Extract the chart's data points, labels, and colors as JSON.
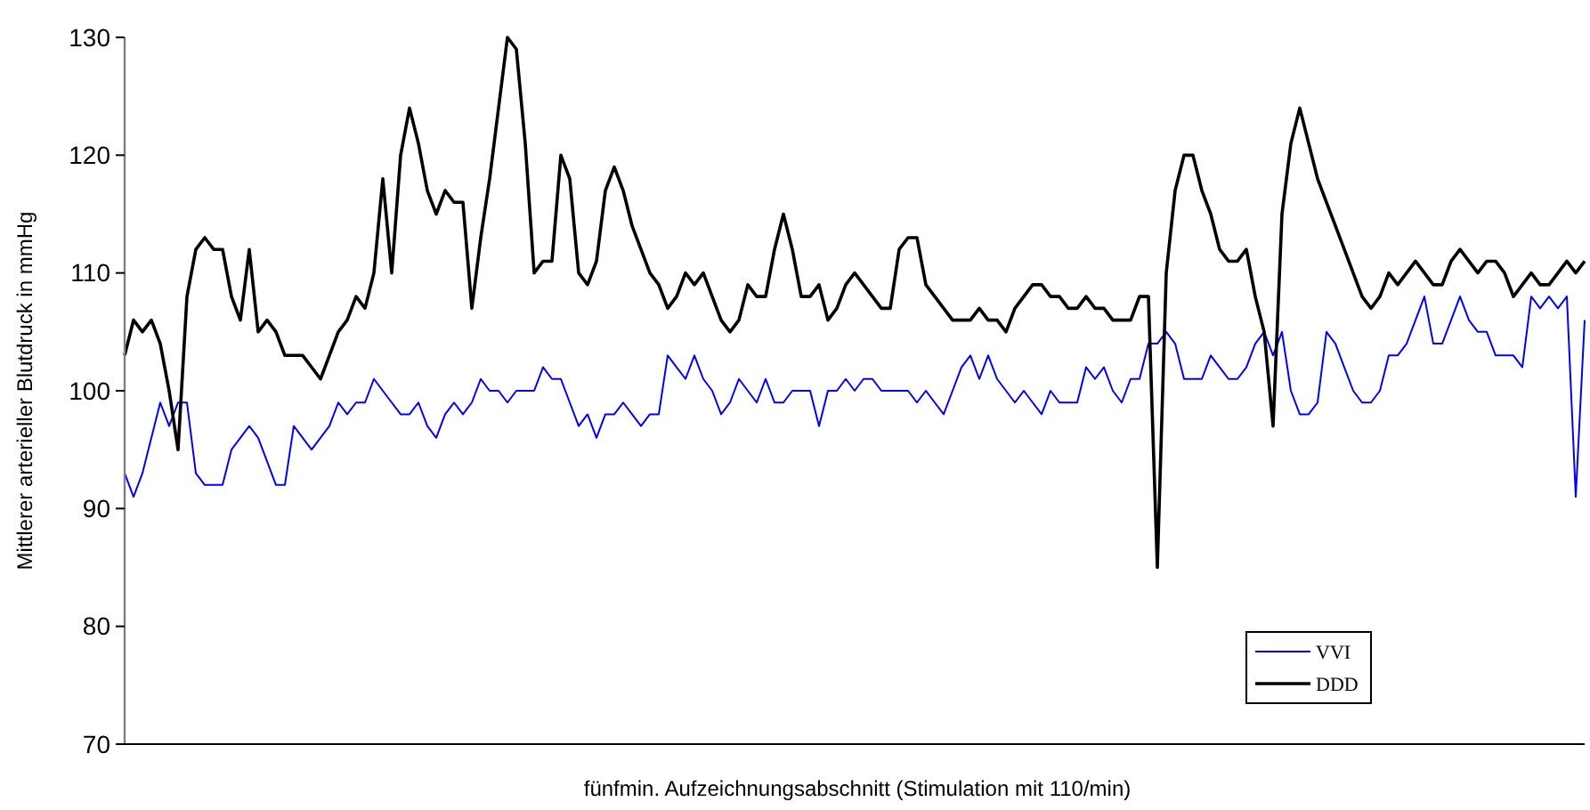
{
  "chart_data": {
    "type": "line",
    "xlabel": "fünfmin. Aufzeichnungsabschnitt (Stimulation mit 110/min)",
    "ylabel": "Mittlerer arterieller Blutdruck in mmHg",
    "ylim": [
      70,
      130
    ],
    "yticks": [
      70,
      80,
      90,
      100,
      110,
      120,
      130
    ],
    "grid": false,
    "legend": "bottom right",
    "categories": [
      null,
      null,
      null,
      null,
      null,
      null,
      null,
      null,
      null,
      null,
      null,
      null,
      null,
      null,
      null,
      null,
      null,
      null,
      null,
      null,
      null,
      null,
      null,
      null,
      null,
      null,
      null,
      null,
      null,
      null,
      null,
      null,
      null,
      null,
      null,
      null,
      null,
      null,
      null,
      null,
      null,
      null,
      null,
      null,
      null,
      null,
      null,
      null,
      null,
      null,
      null,
      null,
      null,
      null,
      null,
      null,
      null,
      null,
      null,
      null,
      null,
      null,
      null,
      null,
      null,
      null,
      null,
      null,
      null,
      null,
      null,
      null,
      null,
      null,
      null,
      null,
      null,
      null,
      null,
      null,
      null,
      null,
      null,
      null,
      null,
      null,
      null,
      null,
      null,
      null,
      null,
      null,
      null,
      null,
      null,
      null,
      null,
      null,
      null,
      null,
      null,
      null,
      null,
      null,
      null,
      null,
      null,
      null,
      null,
      null,
      null,
      null,
      null,
      null,
      null,
      null,
      null,
      null,
      null,
      null,
      null,
      null,
      null,
      null,
      null,
      null,
      null,
      null,
      null,
      null,
      null,
      null,
      null,
      null,
      null,
      null,
      null,
      null,
      null,
      null,
      null,
      null,
      null,
      null,
      null,
      null,
      null,
      null,
      null,
      null,
      null,
      null,
      null,
      null,
      null,
      null,
      null,
      null,
      null,
      null,
      null,
      null,
      null,
      null,
      null
    ],
    "series": [
      {
        "name": "VVI",
        "color": "#0000ff",
        "values": [
          93,
          91,
          93,
          96,
          99,
          97,
          99,
          99,
          93,
          92,
          92,
          92,
          95,
          96,
          97,
          96,
          94,
          92,
          92,
          97,
          96,
          95,
          96,
          97,
          99,
          98,
          99,
          99,
          101,
          100,
          99,
          98,
          98,
          99,
          97,
          96,
          98,
          99,
          98,
          99,
          101,
          100,
          100,
          99,
          100,
          100,
          100,
          102,
          101,
          101,
          99,
          97,
          98,
          96,
          98,
          98,
          99,
          98,
          97,
          98,
          98,
          103,
          102,
          101,
          103,
          101,
          100,
          98,
          99,
          101,
          100,
          99,
          101,
          99,
          99,
          100,
          100,
          100,
          97,
          100,
          100,
          101,
          100,
          101,
          101,
          100,
          100,
          100,
          100,
          99,
          100,
          99,
          98,
          100,
          102,
          103,
          101,
          103,
          101,
          100,
          99,
          100,
          99,
          98,
          100,
          99,
          99,
          99,
          102,
          101,
          102,
          100,
          99,
          101,
          101,
          104,
          104,
          105,
          104,
          101,
          101,
          101,
          103,
          102,
          101,
          101,
          102,
          104,
          105,
          103,
          105,
          100,
          98,
          98,
          99,
          105,
          104,
          102,
          100,
          99,
          99,
          100,
          103,
          103,
          104,
          106,
          108,
          104,
          104,
          106,
          108,
          106,
          105,
          105,
          103,
          103,
          103,
          102,
          108,
          107,
          108,
          107,
          108,
          91,
          106
        ]
      },
      {
        "name": "DDD",
        "color": "#000000",
        "values": [
          103,
          106,
          105,
          106,
          104,
          100,
          95,
          108,
          112,
          113,
          112,
          112,
          108,
          106,
          112,
          105,
          106,
          105,
          103,
          103,
          103,
          102,
          101,
          103,
          105,
          106,
          108,
          107,
          110,
          118,
          110,
          120,
          124,
          121,
          117,
          115,
          117,
          116,
          116,
          107,
          113,
          118,
          124,
          130,
          129,
          121,
          110,
          111,
          111,
          120,
          118,
          110,
          109,
          111,
          117,
          119,
          117,
          114,
          112,
          110,
          109,
          107,
          108,
          110,
          109,
          110,
          108,
          106,
          105,
          106,
          109,
          108,
          108,
          112,
          115,
          112,
          108,
          108,
          109,
          106,
          107,
          109,
          110,
          109,
          108,
          107,
          107,
          112,
          113,
          113,
          109,
          108,
          107,
          106,
          106,
          106,
          107,
          106,
          106,
          105,
          107,
          108,
          109,
          109,
          108,
          108,
          107,
          107,
          108,
          107,
          107,
          106,
          106,
          106,
          108,
          108,
          85,
          110,
          117,
          120,
          120,
          117,
          115,
          112,
          111,
          111,
          112,
          108,
          105,
          97,
          115,
          121,
          124,
          121,
          118,
          116,
          114,
          112,
          110,
          108,
          107,
          108,
          110,
          109,
          110,
          111,
          110,
          109,
          109,
          111,
          112,
          111,
          110,
          111,
          111,
          110,
          108,
          109,
          110,
          109,
          109,
          110,
          111,
          110,
          111
        ]
      }
    ]
  }
}
